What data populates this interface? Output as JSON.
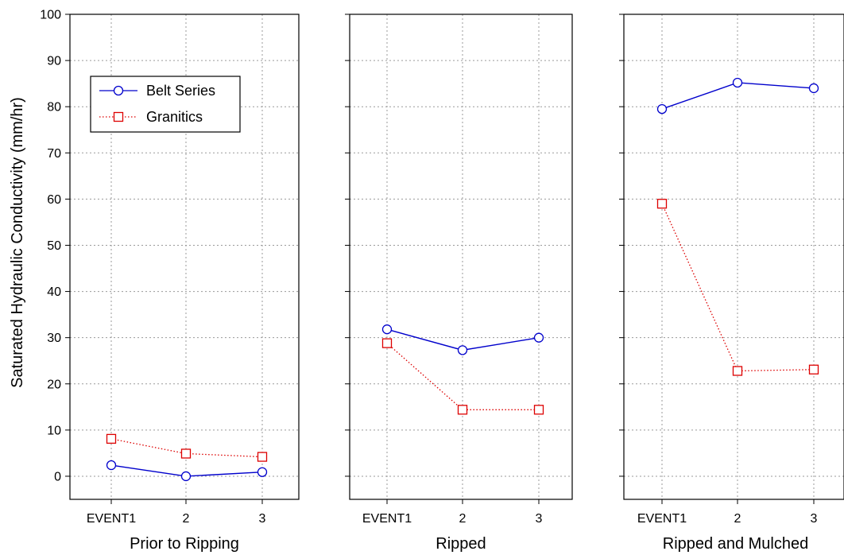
{
  "chart_data": {
    "type": "line",
    "ylabel": "Saturated Hydraulic Conductivity (mm/hr)",
    "ylim": [
      -5,
      100
    ],
    "yticks": [
      0,
      10,
      20,
      30,
      40,
      50,
      60,
      70,
      80,
      90,
      100
    ],
    "x_categories": [
      "EVENT1",
      "2",
      "3"
    ],
    "grid": true,
    "legend": {
      "placement": "top-left of first panel",
      "entries": [
        "Belt Series",
        "Granitics"
      ]
    },
    "series_styles": [
      {
        "name": "Belt Series",
        "color": "#0000cc",
        "marker": "circle",
        "line": "solid"
      },
      {
        "name": "Granitics",
        "color": "#dd0000",
        "marker": "square",
        "line": "dotted"
      }
    ],
    "panels": [
      {
        "label": "Prior to Ripping",
        "series": [
          {
            "name": "Belt Series",
            "values": [
              2.4,
              0,
              0.9
            ]
          },
          {
            "name": "Granitics",
            "values": [
              8.1,
              4.9,
              4.2
            ]
          }
        ]
      },
      {
        "label": "Ripped",
        "series": [
          {
            "name": "Belt Series",
            "values": [
              31.8,
              27.3,
              30.0
            ]
          },
          {
            "name": "Granitics",
            "values": [
              28.8,
              14.4,
              14.4
            ]
          }
        ]
      },
      {
        "label": "Ripped and Mulched",
        "series": [
          {
            "name": "Belt Series",
            "values": [
              79.5,
              85.2,
              84.0
            ]
          },
          {
            "name": "Granitics",
            "values": [
              59.0,
              22.8,
              23.1
            ]
          }
        ]
      }
    ]
  }
}
